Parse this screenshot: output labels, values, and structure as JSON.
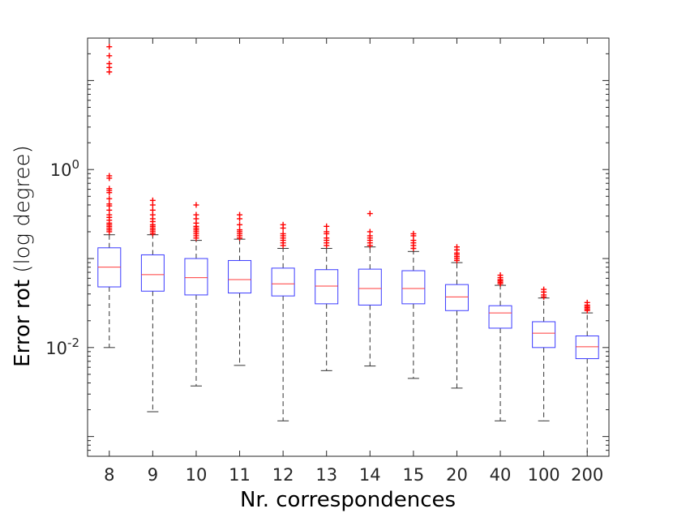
{
  "chart_data": {
    "type": "box",
    "xlabel": "Nr. correspondences",
    "ylabel_main": "Error rot",
    "ylabel_sub": "(log degree)",
    "yscale": "log",
    "ylim": [
      0.0006,
      30
    ],
    "yticks": [
      {
        "value": 0.01,
        "base": "10",
        "exp": "-2"
      },
      {
        "value": 1,
        "base": "10",
        "exp": "0"
      }
    ],
    "grid": false,
    "colors": {
      "box": "#3b3bff",
      "median": "#ff3b3b",
      "whisker": "#333333",
      "outlier": "#ff0000",
      "axes": "#262626"
    },
    "categories": [
      "8",
      "9",
      "10",
      "11",
      "12",
      "13",
      "14",
      "15",
      "20",
      "40",
      "100",
      "200"
    ],
    "boxes": [
      {
        "q1": 0.048,
        "median": 0.08,
        "q3": 0.132,
        "whisker_low": 0.01,
        "whisker_high": 0.185,
        "outliers": [
          0.2,
          0.21,
          0.22,
          0.23,
          0.24,
          0.25,
          0.27,
          0.29,
          0.31,
          0.35,
          0.39,
          0.41,
          0.47,
          0.55,
          0.58,
          0.61,
          0.8,
          0.85,
          12.5,
          14.0,
          15.5,
          19.0,
          24.0
        ]
      },
      {
        "q1": 0.043,
        "median": 0.066,
        "q3": 0.11,
        "whisker_low": 0.0019,
        "whisker_high": 0.185,
        "outliers": [
          0.19,
          0.2,
          0.21,
          0.22,
          0.23,
          0.24,
          0.26,
          0.28,
          0.31,
          0.35,
          0.4,
          0.45
        ]
      },
      {
        "q1": 0.039,
        "median": 0.061,
        "q3": 0.1,
        "whisker_low": 0.0037,
        "whisker_high": 0.16,
        "outliers": [
          0.17,
          0.18,
          0.19,
          0.2,
          0.21,
          0.22,
          0.23,
          0.25,
          0.28,
          0.31,
          0.4
        ]
      },
      {
        "q1": 0.041,
        "median": 0.058,
        "q3": 0.095,
        "whisker_low": 0.0063,
        "whisker_high": 0.165,
        "outliers": [
          0.17,
          0.18,
          0.19,
          0.2,
          0.21,
          0.24,
          0.28,
          0.31
        ]
      },
      {
        "q1": 0.038,
        "median": 0.052,
        "q3": 0.078,
        "whisker_low": 0.0015,
        "whisker_high": 0.13,
        "outliers": [
          0.14,
          0.15,
          0.16,
          0.17,
          0.18,
          0.19,
          0.22,
          0.24
        ]
      },
      {
        "q1": 0.031,
        "median": 0.049,
        "q3": 0.075,
        "whisker_low": 0.0055,
        "whisker_high": 0.13,
        "outliers": [
          0.14,
          0.15,
          0.16,
          0.17,
          0.19,
          0.2,
          0.23
        ]
      },
      {
        "q1": 0.03,
        "median": 0.046,
        "q3": 0.076,
        "whisker_low": 0.0062,
        "whisker_high": 0.135,
        "outliers": [
          0.14,
          0.15,
          0.16,
          0.17,
          0.18,
          0.2,
          0.32
        ]
      },
      {
        "q1": 0.031,
        "median": 0.046,
        "q3": 0.073,
        "whisker_low": 0.0045,
        "whisker_high": 0.12,
        "outliers": [
          0.13,
          0.14,
          0.15,
          0.16,
          0.18,
          0.19
        ]
      },
      {
        "q1": 0.026,
        "median": 0.037,
        "q3": 0.051,
        "whisker_low": 0.0035,
        "whisker_high": 0.09,
        "outliers": [
          0.095,
          0.1,
          0.105,
          0.11,
          0.115,
          0.125,
          0.135
        ]
      },
      {
        "q1": 0.0165,
        "median": 0.0245,
        "q3": 0.0295,
        "whisker_low": 0.0015,
        "whisker_high": 0.05,
        "outliers": [
          0.052,
          0.054,
          0.056,
          0.058,
          0.061,
          0.065
        ]
      },
      {
        "q1": 0.01,
        "median": 0.0145,
        "q3": 0.0195,
        "whisker_low": 0.0015,
        "whisker_high": 0.036,
        "outliers": [
          0.037,
          0.039,
          0.042,
          0.045
        ]
      },
      {
        "q1": 0.0075,
        "median": 0.0102,
        "q3": 0.0135,
        "whisker_low": 0.0006,
        "whisker_high": 0.0245,
        "outliers": [
          0.026,
          0.027,
          0.028,
          0.029,
          0.03,
          0.032
        ]
      }
    ]
  }
}
